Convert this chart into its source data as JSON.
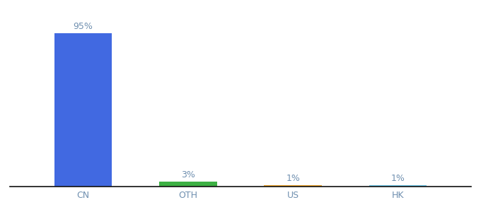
{
  "categories": [
    "CN",
    "OTH",
    "US",
    "HK"
  ],
  "values": [
    95,
    3,
    1,
    1
  ],
  "bar_colors": [
    "#4169e1",
    "#3cb043",
    "#f0a830",
    "#70c8e8"
  ],
  "labels": [
    "95%",
    "3%",
    "1%",
    "1%"
  ],
  "ylim": [
    0,
    105
  ],
  "background_color": "#ffffff",
  "bar_width": 0.55,
  "label_fontsize": 9,
  "tick_fontsize": 9,
  "label_color": "#7090b0"
}
